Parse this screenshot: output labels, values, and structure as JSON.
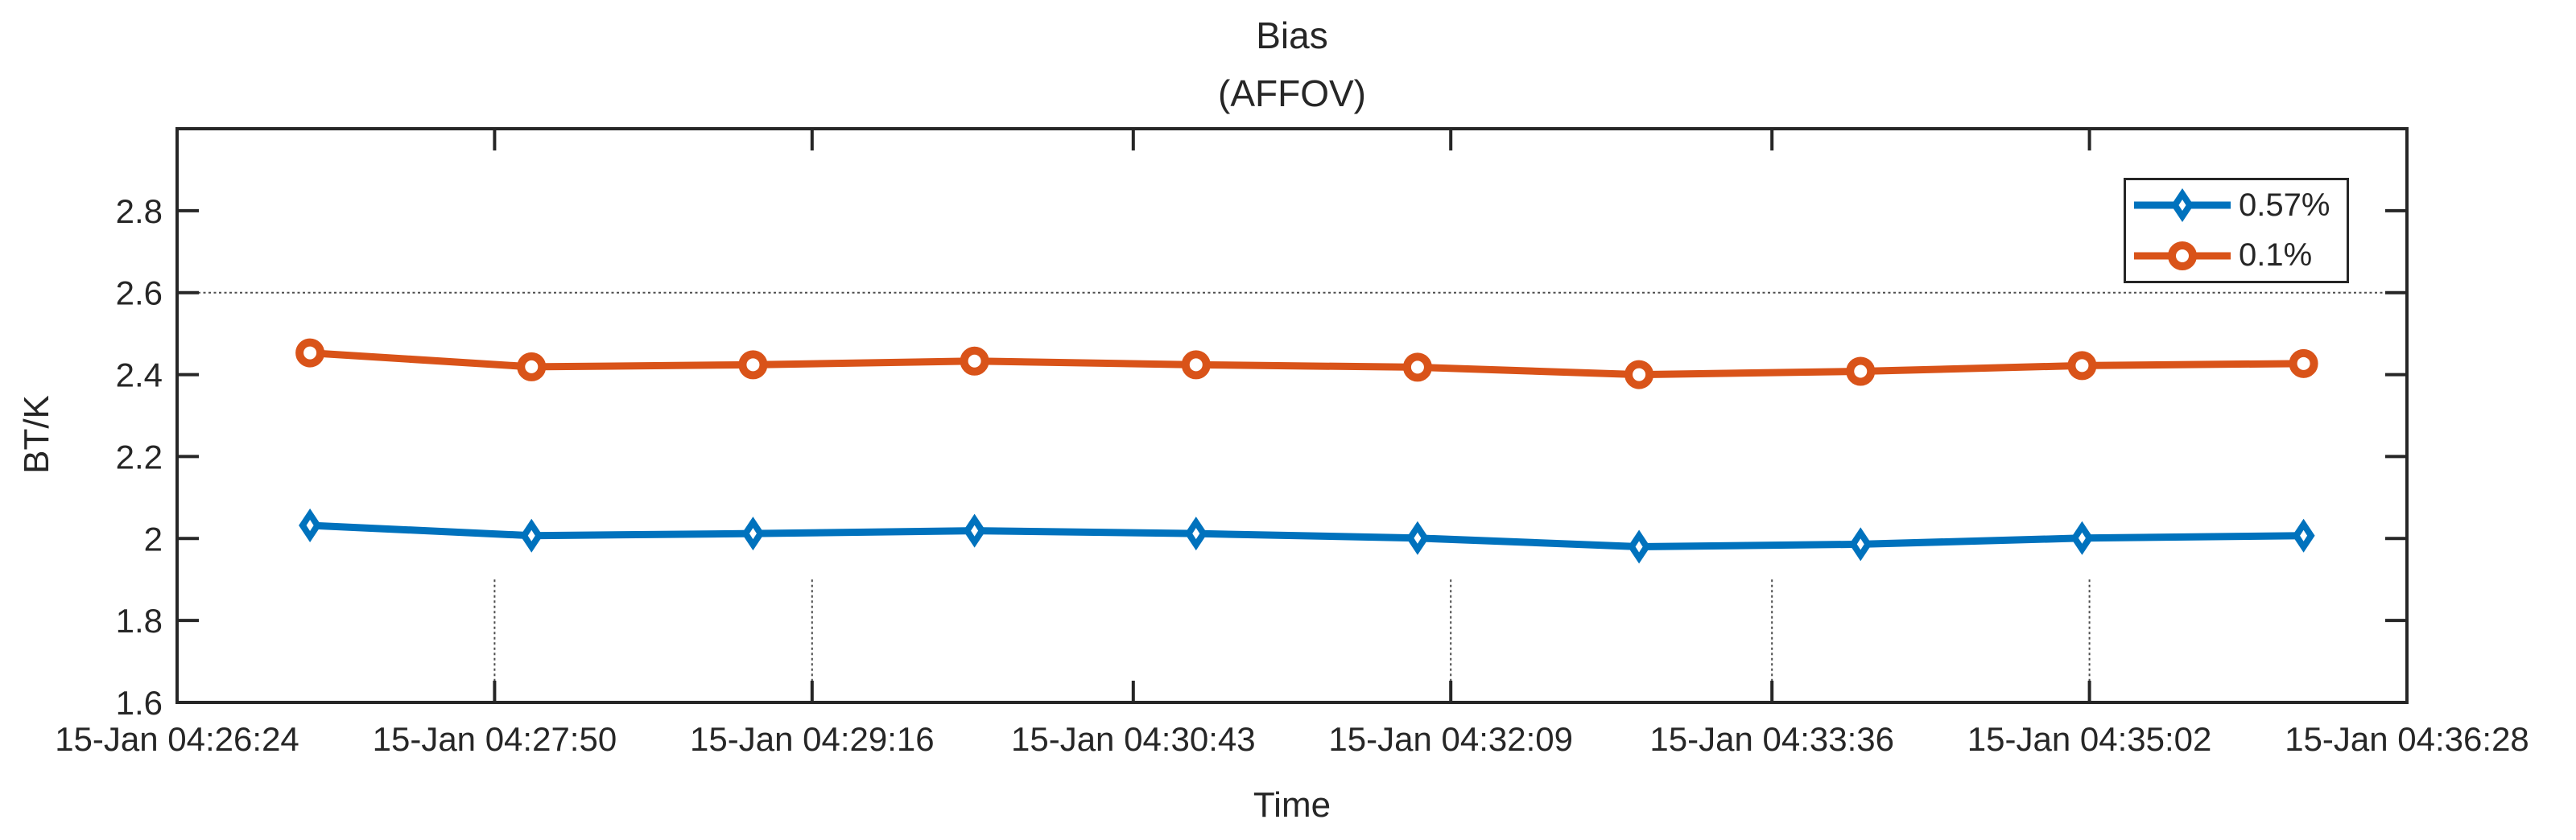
{
  "figure": {
    "background": "#ffffff"
  },
  "title": {
    "line1": "Bias",
    "line2": "(AFFOV)"
  },
  "axis_labels": {
    "x": "Time",
    "y": "BT/K"
  },
  "legend": {
    "position": "northeast",
    "items": [
      {
        "label": "0.57%",
        "color": "#0072bd",
        "marker": "diamond"
      },
      {
        "label": "0.1%",
        "color": "#d95319",
        "marker": "circle"
      }
    ]
  },
  "chart_data": {
    "type": "line",
    "title": "Bias (AFFOV)",
    "xlabel": "Time",
    "ylabel": "BT/K",
    "grid": "off",
    "legend_position": "northeast",
    "x_axis": {
      "tick_labels": [
        "15-Jan 04:26:24",
        "15-Jan 04:27:50",
        "15-Jan 04:29:16",
        "15-Jan 04:30:43",
        "15-Jan 04:32:09",
        "15-Jan 04:33:36",
        "15-Jan 04:35:02",
        "15-Jan 04:36:28"
      ],
      "tick_times": [
        "04:26:24",
        "04:27:50",
        "04:29:16",
        "04:30:43",
        "04:32:09",
        "04:33:36",
        "04:35:02",
        "04:36:28"
      ]
    },
    "y_axis": {
      "lim": [
        1.6,
        3.0
      ],
      "ticks": [
        "1.6",
        "1.8",
        "2",
        "2.2",
        "2.4",
        "2.6",
        "2.8"
      ],
      "tick_values": [
        1.6,
        1.8,
        2.0,
        2.2,
        2.4,
        2.6,
        2.8
      ]
    },
    "series": [
      {
        "name": "0.57%",
        "color": "#0072bd",
        "marker": "diamond",
        "x_times": [
          "04:27:00",
          "04:28:00",
          "04:29:00",
          "04:30:00",
          "04:31:00",
          "04:32:00",
          "04:33:00",
          "04:34:00",
          "04:35:00",
          "04:36:00"
        ],
        "values": [
          2.032,
          2.007,
          2.012,
          2.019,
          2.012,
          2.001,
          1.98,
          1.986,
          2.001,
          2.007
        ]
      },
      {
        "name": "0.1%",
        "color": "#d95319",
        "marker": "circle",
        "x_times": [
          "04:27:00",
          "04:28:00",
          "04:29:00",
          "04:30:00",
          "04:31:00",
          "04:32:00",
          "04:33:00",
          "04:34:00",
          "04:35:00",
          "04:36:00"
        ],
        "values": [
          2.453,
          2.419,
          2.424,
          2.433,
          2.424,
          2.418,
          2.4,
          2.408,
          2.422,
          2.427
        ]
      }
    ],
    "reference_line": {
      "y": 2.6,
      "style": "dotted",
      "color": "#4d4d4d"
    },
    "partial_gridlines": {
      "tick_indices": [
        1,
        2,
        4,
        5,
        6
      ],
      "y_from": 1.6,
      "y_to": 1.9,
      "style": "dotted",
      "color": "#4d4d4d"
    },
    "axis_color": "#262626"
  }
}
